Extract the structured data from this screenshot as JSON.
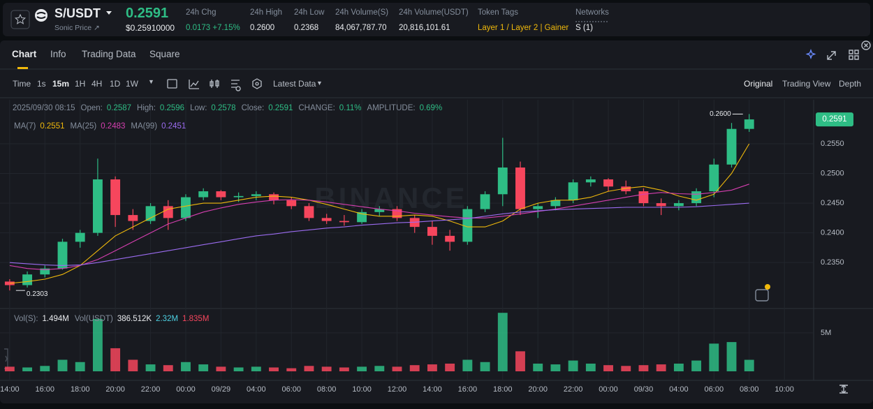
{
  "header": {
    "symbol": "S/USDT",
    "subtitle": "Sonic Price ↗",
    "last_price": "0.2591",
    "last_price_usd": "$0.25910000",
    "stats": [
      {
        "label": "24h Chg",
        "value": "0.0173 +7.15%"
      },
      {
        "label": "24h High",
        "value": "0.2600"
      },
      {
        "label": "24h Low",
        "value": "0.2368"
      },
      {
        "label": "24h Volume(S)",
        "value": "84,067,787.70"
      },
      {
        "label": "24h Volume(USDT)",
        "value": "20,816,101.61"
      },
      {
        "label": "Token Tags",
        "value": "Layer 1 / Layer 2 | Gainer"
      },
      {
        "label": "Networks",
        "value": "S (1)"
      }
    ]
  },
  "tabs": [
    "Chart",
    "Info",
    "Trading Data",
    "Square"
  ],
  "toolbar": {
    "intervals": [
      "Time",
      "1s",
      "15m",
      "1H",
      "4H",
      "1D",
      "1W"
    ],
    "latest": "Latest Data",
    "views": [
      "Original",
      "Trading View",
      "Depth"
    ]
  },
  "info": {
    "datetime": "2025/09/30 08:15",
    "fields": [
      {
        "label": "Open:",
        "value": "0.2587"
      },
      {
        "label": "High:",
        "value": "0.2596"
      },
      {
        "label": "Low:",
        "value": "0.2578"
      },
      {
        "label": "Close:",
        "value": "0.2591"
      },
      {
        "label": "CHANGE:",
        "value": "0.11%"
      },
      {
        "label": "AMPLITUDE:",
        "value": "0.69%"
      }
    ],
    "ma_values": [
      "0.2551",
      "0.2483",
      "0.2451"
    ],
    "volume": [
      {
        "label": "Vol(S):",
        "value": "1.494M"
      },
      {
        "label": "Vol(USDT)",
        "value": "386.512K"
      },
      {
        "label": "2.32M"
      },
      {
        "label": "1.835M"
      }
    ]
  },
  "chart_data": [
    {
      "type": "candlestick",
      "watermark": "BINANCE",
      "up_color": "#2ebd85",
      "down_color": "#f6465d",
      "grid": true,
      "x": [
        14,
        15,
        16,
        17,
        18,
        19,
        20,
        21,
        22,
        23,
        24,
        25,
        26,
        27,
        28,
        29,
        30,
        31,
        32,
        33,
        34,
        35,
        36,
        37,
        38,
        39,
        40,
        41,
        42,
        43,
        44,
        45,
        46,
        47,
        48,
        49,
        50,
        51,
        52,
        53,
        54,
        55,
        56
      ],
      "open": [
        0.2318,
        0.2312,
        0.233,
        0.234,
        0.2385,
        0.24,
        0.249,
        0.243,
        0.242,
        0.2445,
        0.2425,
        0.246,
        0.247,
        0.246,
        0.2462,
        0.2465,
        0.2455,
        0.2445,
        0.2425,
        0.242,
        0.2418,
        0.2435,
        0.244,
        0.2425,
        0.241,
        0.2395,
        0.2385,
        0.244,
        0.2465,
        0.251,
        0.244,
        0.2445,
        0.2455,
        0.2485,
        0.249,
        0.2478,
        0.247,
        0.245,
        0.2445,
        0.245,
        0.247,
        0.2515,
        0.2575
      ],
      "high": [
        0.2322,
        0.2335,
        0.2345,
        0.239,
        0.2405,
        0.2525,
        0.2495,
        0.244,
        0.245,
        0.2455,
        0.2465,
        0.2475,
        0.2472,
        0.2468,
        0.247,
        0.2468,
        0.246,
        0.245,
        0.2432,
        0.243,
        0.244,
        0.2445,
        0.2445,
        0.243,
        0.242,
        0.2405,
        0.2445,
        0.247,
        0.256,
        0.252,
        0.245,
        0.246,
        0.249,
        0.2495,
        0.2492,
        0.2488,
        0.2475,
        0.2458,
        0.2455,
        0.2475,
        0.2525,
        0.2585,
        0.26
      ],
      "low": [
        0.2303,
        0.2308,
        0.2325,
        0.2338,
        0.2375,
        0.2395,
        0.241,
        0.2405,
        0.2415,
        0.2405,
        0.242,
        0.2455,
        0.2455,
        0.2452,
        0.2455,
        0.2448,
        0.244,
        0.242,
        0.2415,
        0.2412,
        0.2415,
        0.2428,
        0.242,
        0.24,
        0.238,
        0.237,
        0.238,
        0.2435,
        0.2445,
        0.243,
        0.2425,
        0.2438,
        0.245,
        0.2478,
        0.247,
        0.2465,
        0.2445,
        0.243,
        0.2438,
        0.2445,
        0.246,
        0.251,
        0.257
      ],
      "close": [
        0.2312,
        0.233,
        0.234,
        0.2385,
        0.24,
        0.249,
        0.243,
        0.242,
        0.2445,
        0.2425,
        0.246,
        0.247,
        0.246,
        0.2462,
        0.2465,
        0.2455,
        0.2445,
        0.2425,
        0.242,
        0.2418,
        0.2435,
        0.244,
        0.2425,
        0.241,
        0.2395,
        0.2385,
        0.244,
        0.2465,
        0.251,
        0.244,
        0.2445,
        0.2455,
        0.2485,
        0.249,
        0.2478,
        0.247,
        0.245,
        0.2445,
        0.245,
        0.247,
        0.2515,
        0.2575,
        0.2591
      ],
      "series": [
        {
          "name": "MA(7)",
          "color": "#f0b90b",
          "values": [
            0.2315,
            0.2318,
            0.2322,
            0.233,
            0.2345,
            0.237,
            0.2395,
            0.241,
            0.2425,
            0.244,
            0.2445,
            0.245,
            0.245,
            0.2455,
            0.246,
            0.2462,
            0.246,
            0.2455,
            0.2448,
            0.244,
            0.2432,
            0.2428,
            0.2428,
            0.243,
            0.2428,
            0.242,
            0.241,
            0.241,
            0.242,
            0.244,
            0.245,
            0.2455,
            0.2455,
            0.246,
            0.247,
            0.2475,
            0.2478,
            0.2472,
            0.2462,
            0.2455,
            0.2465,
            0.25,
            0.255
          ]
        },
        {
          "name": "MA(25)",
          "color": "#d63fb0",
          "values": [
            0.2345,
            0.234,
            0.2338,
            0.234,
            0.2345,
            0.2355,
            0.237,
            0.2385,
            0.24,
            0.2415,
            0.2425,
            0.2435,
            0.2442,
            0.2448,
            0.2452,
            0.2455,
            0.2456,
            0.2455,
            0.2452,
            0.2448,
            0.2444,
            0.244,
            0.2437,
            0.2433,
            0.243,
            0.2427,
            0.2425,
            0.2425,
            0.2428,
            0.2432,
            0.2436,
            0.244,
            0.2445,
            0.245,
            0.2455,
            0.246,
            0.2465,
            0.2468,
            0.2466,
            0.2465,
            0.2468,
            0.2472,
            0.2482
          ]
        },
        {
          "name": "MA(99)",
          "color": "#9b6cf0",
          "values": [
            0.235,
            0.2348,
            0.2346,
            0.2345,
            0.2346,
            0.235,
            0.2355,
            0.236,
            0.2365,
            0.237,
            0.2375,
            0.238,
            0.2385,
            0.239,
            0.2395,
            0.2398,
            0.2402,
            0.2405,
            0.2408,
            0.241,
            0.2413,
            0.2415,
            0.2417,
            0.2418,
            0.242,
            0.2422,
            0.2424,
            0.2428,
            0.2432,
            0.2435,
            0.2437,
            0.2439,
            0.244,
            0.2441,
            0.2442,
            0.2443,
            0.2443,
            0.2443,
            0.2443,
            0.2444,
            0.2446,
            0.2448,
            0.245
          ]
        }
      ],
      "max_marker": {
        "x": 56,
        "value": 0.26,
        "label": "0.2600"
      },
      "min_marker": {
        "x": 14,
        "value": 0.2303,
        "label": "0.2303"
      },
      "last_price": {
        "value": 0.2591,
        "label": "0.2591"
      },
      "xlim": [
        13.45,
        59.66
      ],
      "ylim": [
        0.2275,
        0.2624
      ],
      "yticks": [
        {
          "value": 0.255,
          "label": "0.2550"
        },
        {
          "value": 0.25,
          "label": "0.2500"
        },
        {
          "value": 0.245,
          "label": "0.2450"
        },
        {
          "value": 0.24,
          "label": "0.2400"
        },
        {
          "value": 0.235,
          "label": "0.2350"
        }
      ],
      "xticks": [
        {
          "value": 14,
          "label": "14:00"
        },
        {
          "value": 16,
          "label": "16:00"
        },
        {
          "value": 18,
          "label": "18:00"
        },
        {
          "value": 20,
          "label": "20:00"
        },
        {
          "value": 22,
          "label": "22:00"
        },
        {
          "value": 24,
          "label": "00:00"
        },
        {
          "value": 26,
          "label": "09/29"
        },
        {
          "value": 28,
          "label": "04:00"
        },
        {
          "value": 30,
          "label": "06:00"
        },
        {
          "value": 32,
          "label": "08:00"
        },
        {
          "value": 34,
          "label": "10:00"
        },
        {
          "value": 36,
          "label": "12:00"
        },
        {
          "value": 38,
          "label": "14:00"
        },
        {
          "value": 40,
          "label": "16:00"
        },
        {
          "value": 42,
          "label": "18:00"
        },
        {
          "value": 44,
          "label": "20:00"
        },
        {
          "value": 46,
          "label": "22:00"
        },
        {
          "value": 48,
          "label": "00:00"
        },
        {
          "value": 50,
          "label": "09/30"
        },
        {
          "value": 52,
          "label": "04:00"
        },
        {
          "value": 54,
          "label": "06:00"
        },
        {
          "value": 56,
          "label": "08:00"
        },
        {
          "value": 58,
          "label": "10:00"
        }
      ]
    },
    {
      "type": "bar",
      "x": [
        14,
        15,
        16,
        17,
        18,
        19,
        20,
        21,
        22,
        23,
        24,
        25,
        26,
        27,
        28,
        29,
        30,
        31,
        32,
        33,
        34,
        35,
        36,
        37,
        38,
        39,
        40,
        41,
        42,
        43,
        44,
        45,
        46,
        47,
        48,
        49,
        50,
        51,
        52,
        53,
        54,
        55,
        56
      ],
      "values": [
        600000,
        500000,
        700000,
        1500000,
        1200000,
        6800000,
        3000000,
        1500000,
        900000,
        800000,
        1200000,
        900000,
        600000,
        500000,
        600000,
        500000,
        400000,
        700000,
        600000,
        500000,
        600000,
        700000,
        600000,
        800000,
        900000,
        1000000,
        1500000,
        1200000,
        7600000,
        2600000,
        1000000,
        900000,
        1400000,
        1000000,
        800000,
        700000,
        800000,
        900000,
        1000000,
        1400000,
        3600000,
        3800000,
        1494000
      ],
      "xlim": [
        13.45,
        59.66
      ],
      "ylim": [
        0,
        7800000
      ],
      "yticks": [
        {
          "value": 5000000,
          "label": "5M"
        }
      ]
    }
  ]
}
